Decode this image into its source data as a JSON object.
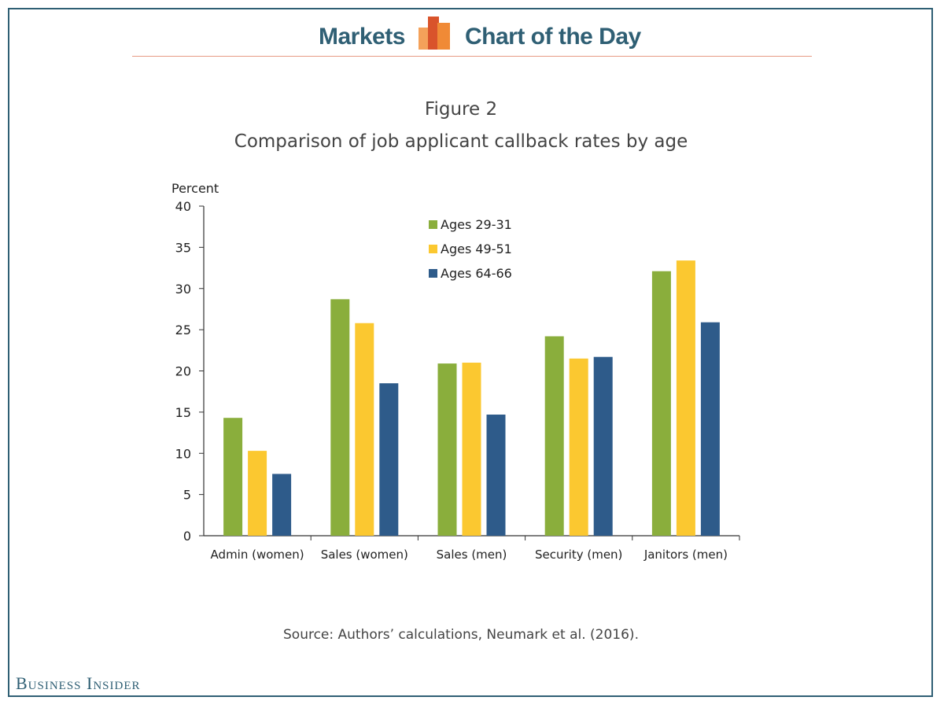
{
  "header": {
    "left_label": "Markets",
    "right_label": "Chart of the Day",
    "logo_icon": "bar-logo-icon"
  },
  "footer": {
    "brand": "Business Insider"
  },
  "colors": {
    "frame": "#2f5f74",
    "header_rule": "#e79a84",
    "series": [
      "#8aae3c",
      "#fbc830",
      "#2e5b8a"
    ]
  },
  "chart_data": {
    "type": "bar",
    "title": "Figure 2",
    "subtitle": "Comparison of job applicant callback rates by age",
    "ylabel": "Percent",
    "xlabel": "",
    "ylim": [
      0,
      40
    ],
    "yticks": [
      0,
      5,
      10,
      15,
      20,
      25,
      30,
      35,
      40
    ],
    "categories": [
      "Admin (women)",
      "Sales (women)",
      "Sales (men)",
      "Security (men)",
      "Janitors (men)"
    ],
    "series": [
      {
        "name": "Ages 29-31",
        "values": [
          14.3,
          28.7,
          20.9,
          24.2,
          32.1
        ]
      },
      {
        "name": "Ages 49-51",
        "values": [
          10.3,
          25.8,
          21.0,
          21.5,
          33.4
        ]
      },
      {
        "name": "Ages 64-66",
        "values": [
          7.5,
          18.5,
          14.7,
          21.7,
          25.9
        ]
      }
    ],
    "legend": "top-center",
    "grid": false,
    "source": "Source: Authors’ calculations, Neumark et al. (2016)."
  }
}
